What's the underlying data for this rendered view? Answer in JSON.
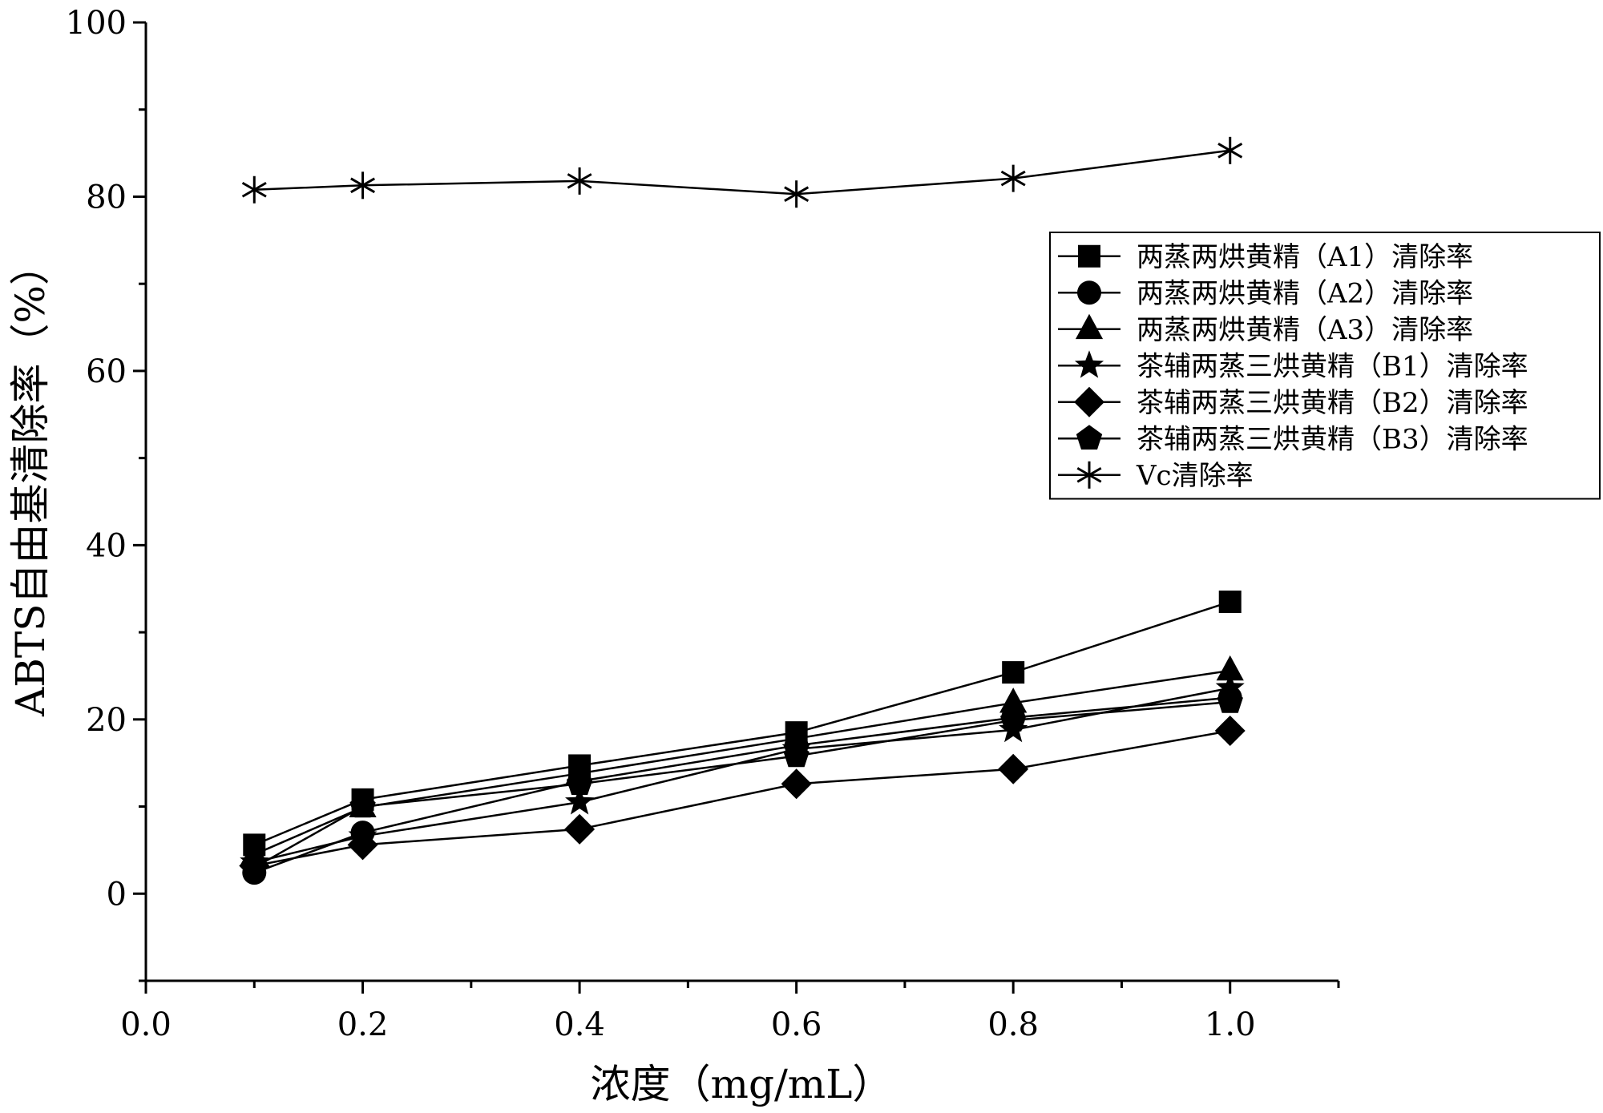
{
  "chart_data": {
    "type": "line",
    "title": "",
    "xlabel": "浓度（mg/mL）",
    "ylabel": "ABTS自由基清除率（%）",
    "xlim": [
      0.0,
      1.1
    ],
    "ylim": [
      -10,
      100
    ],
    "x_ticks": [
      0.0,
      0.2,
      0.4,
      0.6,
      0.8,
      1.0
    ],
    "x_tick_labels": [
      "0.0",
      "0.2",
      "0.4",
      "0.6",
      "0.8",
      "1.0"
    ],
    "y_ticks": [
      0,
      20,
      40,
      60,
      80,
      100
    ],
    "y_tick_labels": [
      "0",
      "20",
      "40",
      "60",
      "80",
      "100"
    ],
    "grid": false,
    "legend_position": "right",
    "x": [
      0.1,
      0.2,
      0.4,
      0.6,
      0.8,
      1.0
    ],
    "series": [
      {
        "name": "两蒸两烘黄精（A1）清除率",
        "marker": "square",
        "values": [
          5.6,
          10.8,
          14.7,
          18.5,
          25.4,
          33.5
        ]
      },
      {
        "name": "两蒸两烘黄精（A2）清除率",
        "marker": "circle",
        "values": [
          2.4,
          7.0,
          12.9,
          17.0,
          20.2,
          22.5
        ]
      },
      {
        "name": "两蒸两烘黄精（A3）清除率",
        "marker": "triangle",
        "values": [
          4.5,
          9.9,
          13.8,
          17.8,
          21.9,
          25.6
        ]
      },
      {
        "name": "茶辅两蒸三烘黄精（B1）清除率",
        "marker": "star",
        "values": [
          3.6,
          6.6,
          10.5,
          16.6,
          18.8,
          23.6
        ]
      },
      {
        "name": "茶辅两蒸三烘黄精（B2）清除率",
        "marker": "diamond",
        "values": [
          3.2,
          5.6,
          7.4,
          12.6,
          14.3,
          18.7
        ]
      },
      {
        "name": "茶辅两蒸三烘黄精（B3）清除率",
        "marker": "pentagon",
        "values": [
          3.0,
          10.0,
          12.6,
          15.8,
          19.9,
          22.0
        ]
      },
      {
        "name": "Vc清除率",
        "marker": "asterisk",
        "values": [
          80.8,
          81.3,
          81.8,
          80.3,
          82.1,
          85.3
        ]
      }
    ]
  }
}
